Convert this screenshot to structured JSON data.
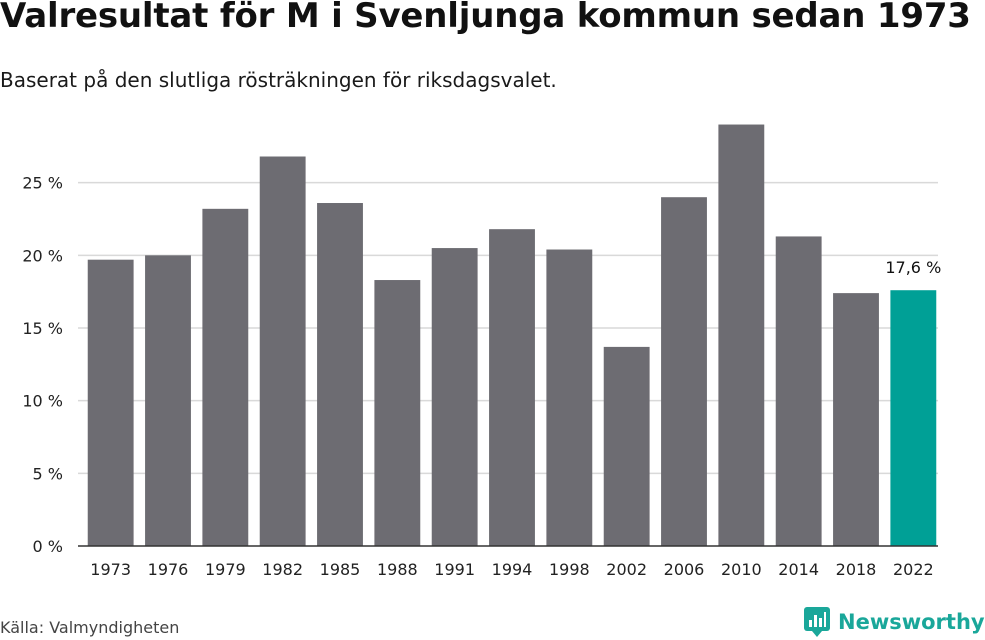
{
  "header": {
    "title": "Valresultat för M i Svenljunga kommun sedan 1973",
    "subtitle": "Baserat på den slutliga rösträkningen för riksdagsvalet."
  },
  "footer": {
    "source": "Källa: Valmyndigheten",
    "brand": "Newsworthy"
  },
  "colors": {
    "bar": "#6d6c72",
    "highlight": "#00a096",
    "grid": "#d9d9d9",
    "axis": "#333333",
    "brand": "#1aa79a"
  },
  "chart_data": {
    "type": "bar",
    "categories": [
      "1973",
      "1976",
      "1979",
      "1982",
      "1985",
      "1988",
      "1991",
      "1994",
      "1998",
      "2002",
      "2006",
      "2010",
      "2014",
      "2018",
      "2022"
    ],
    "values": [
      19.7,
      20.0,
      23.2,
      26.8,
      23.6,
      18.3,
      20.5,
      21.8,
      20.4,
      13.7,
      24.0,
      29.0,
      21.3,
      17.4,
      17.6
    ],
    "highlight_index": 14,
    "data_labels": [
      {
        "index": 14,
        "text": "17,6 %"
      }
    ],
    "yticks": [
      0,
      5,
      10,
      15,
      20,
      25
    ],
    "ytick_labels": [
      "0 %",
      "5 %",
      "10 %",
      "15 %",
      "20 %",
      "25 %"
    ],
    "ylim": [
      0,
      30
    ],
    "grid": true,
    "legend": "none"
  }
}
